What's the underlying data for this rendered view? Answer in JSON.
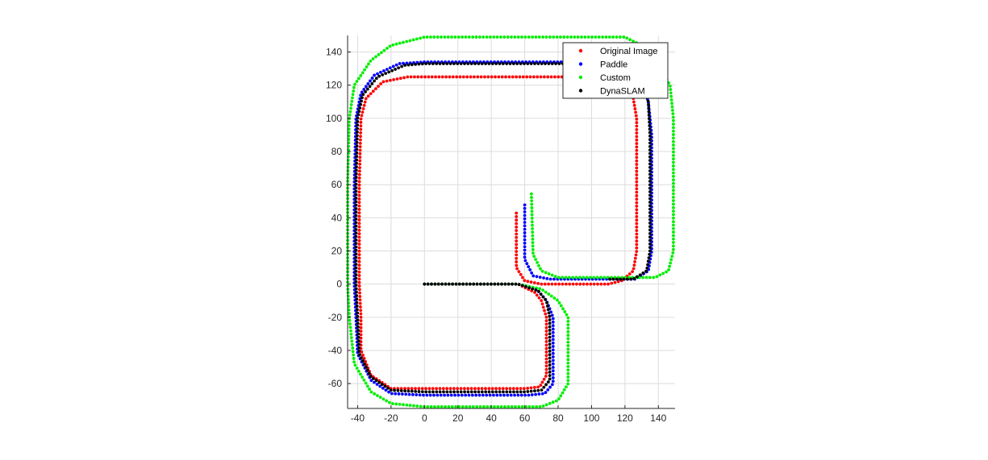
{
  "chart_data": {
    "type": "scatter",
    "title": "",
    "xlabel": "",
    "ylabel": "",
    "xlim": [
      -46,
      150
    ],
    "ylim": [
      -75,
      150
    ],
    "xticks": [
      -40,
      -20,
      0,
      20,
      40,
      60,
      80,
      100,
      120,
      140
    ],
    "yticks": [
      -60,
      -40,
      -20,
      0,
      20,
      40,
      60,
      80,
      100,
      120,
      140
    ],
    "grid": true,
    "legend_position": "top-right",
    "series": [
      {
        "name": "Original Image",
        "color": "#ff0000",
        "path": [
          [
            0,
            0
          ],
          [
            56,
            0
          ],
          [
            66,
            -5
          ],
          [
            70,
            -10
          ],
          [
            73,
            -20
          ],
          [
            73,
            -55
          ],
          [
            69,
            -62
          ],
          [
            60,
            -63
          ],
          [
            0,
            -63
          ],
          [
            -20,
            -63
          ],
          [
            -32,
            -55
          ],
          [
            -38,
            -40
          ],
          [
            -38,
            -20
          ],
          [
            -39,
            0
          ],
          [
            -39,
            60
          ],
          [
            -38,
            100
          ],
          [
            -35,
            112
          ],
          [
            -25,
            122
          ],
          [
            -10,
            125
          ],
          [
            0,
            125
          ],
          [
            40,
            125
          ],
          [
            90,
            125
          ],
          [
            118,
            124
          ],
          [
            124,
            118
          ],
          [
            127,
            100
          ],
          [
            127,
            40
          ],
          [
            127,
            20
          ],
          [
            125,
            8
          ],
          [
            118,
            2
          ],
          [
            110,
            0
          ],
          [
            70,
            0
          ],
          [
            60,
            2
          ],
          [
            55,
            10
          ],
          [
            55,
            44
          ]
        ]
      },
      {
        "name": "Paddle",
        "color": "#0000ff",
        "path": [
          [
            0,
            0
          ],
          [
            56,
            0
          ],
          [
            67,
            -3
          ],
          [
            73,
            -10
          ],
          [
            77,
            -20
          ],
          [
            77,
            -60
          ],
          [
            72,
            -66
          ],
          [
            62,
            -67
          ],
          [
            0,
            -67
          ],
          [
            -20,
            -66
          ],
          [
            -32,
            -58
          ],
          [
            -40,
            -42
          ],
          [
            -41,
            -20
          ],
          [
            -42,
            0
          ],
          [
            -42,
            60
          ],
          [
            -41,
            100
          ],
          [
            -38,
            115
          ],
          [
            -30,
            126
          ],
          [
            -15,
            133
          ],
          [
            0,
            134
          ],
          [
            40,
            134
          ],
          [
            90,
            134
          ],
          [
            120,
            133
          ],
          [
            128,
            128
          ],
          [
            134,
            110
          ],
          [
            136,
            90
          ],
          [
            136,
            40
          ],
          [
            136,
            20
          ],
          [
            134,
            8
          ],
          [
            126,
            3
          ],
          [
            110,
            3
          ],
          [
            75,
            3
          ],
          [
            65,
            5
          ],
          [
            60,
            15
          ],
          [
            60,
            48
          ]
        ]
      },
      {
        "name": "Custom",
        "color": "#00ee00",
        "path": [
          [
            0,
            0
          ],
          [
            56,
            0
          ],
          [
            70,
            -3
          ],
          [
            80,
            -10
          ],
          [
            86,
            -20
          ],
          [
            86,
            -60
          ],
          [
            80,
            -70
          ],
          [
            70,
            -74
          ],
          [
            50,
            -74
          ],
          [
            0,
            -74
          ],
          [
            -20,
            -72
          ],
          [
            -32,
            -65
          ],
          [
            -42,
            -48
          ],
          [
            -45,
            -20
          ],
          [
            -46,
            0
          ],
          [
            -46,
            60
          ],
          [
            -45,
            100
          ],
          [
            -42,
            120
          ],
          [
            -32,
            135
          ],
          [
            -20,
            144
          ],
          [
            0,
            149
          ],
          [
            40,
            149
          ],
          [
            100,
            149
          ],
          [
            120,
            149
          ],
          [
            130,
            144
          ],
          [
            140,
            132
          ],
          [
            147,
            120
          ],
          [
            149,
            100
          ],
          [
            149,
            40
          ],
          [
            149,
            20
          ],
          [
            146,
            8
          ],
          [
            138,
            4
          ],
          [
            120,
            4
          ],
          [
            80,
            4
          ],
          [
            70,
            8
          ],
          [
            65,
            18
          ],
          [
            64,
            55
          ]
        ]
      },
      {
        "name": "DynaSLAM",
        "color": "#000000",
        "path": [
          [
            0,
            0
          ],
          [
            56,
            0
          ],
          [
            68,
            -4
          ],
          [
            73,
            -10
          ],
          [
            75,
            -20
          ],
          [
            75,
            -58
          ],
          [
            70,
            -64
          ],
          [
            60,
            -65
          ],
          [
            0,
            -65
          ],
          [
            -20,
            -64
          ],
          [
            -32,
            -56
          ],
          [
            -39,
            -42
          ],
          [
            -40,
            -20
          ],
          [
            -41,
            0
          ],
          [
            -41,
            60
          ],
          [
            -40,
            100
          ],
          [
            -37,
            114
          ],
          [
            -28,
            125
          ],
          [
            -12,
            132
          ],
          [
            0,
            133
          ],
          [
            40,
            133
          ],
          [
            90,
            133
          ],
          [
            120,
            132
          ],
          [
            130,
            126
          ],
          [
            134,
            110
          ],
          [
            135,
            90
          ],
          [
            135,
            40
          ],
          [
            135,
            20
          ],
          [
            133,
            8
          ],
          [
            125,
            3
          ],
          [
            110,
            3
          ]
        ]
      }
    ]
  }
}
